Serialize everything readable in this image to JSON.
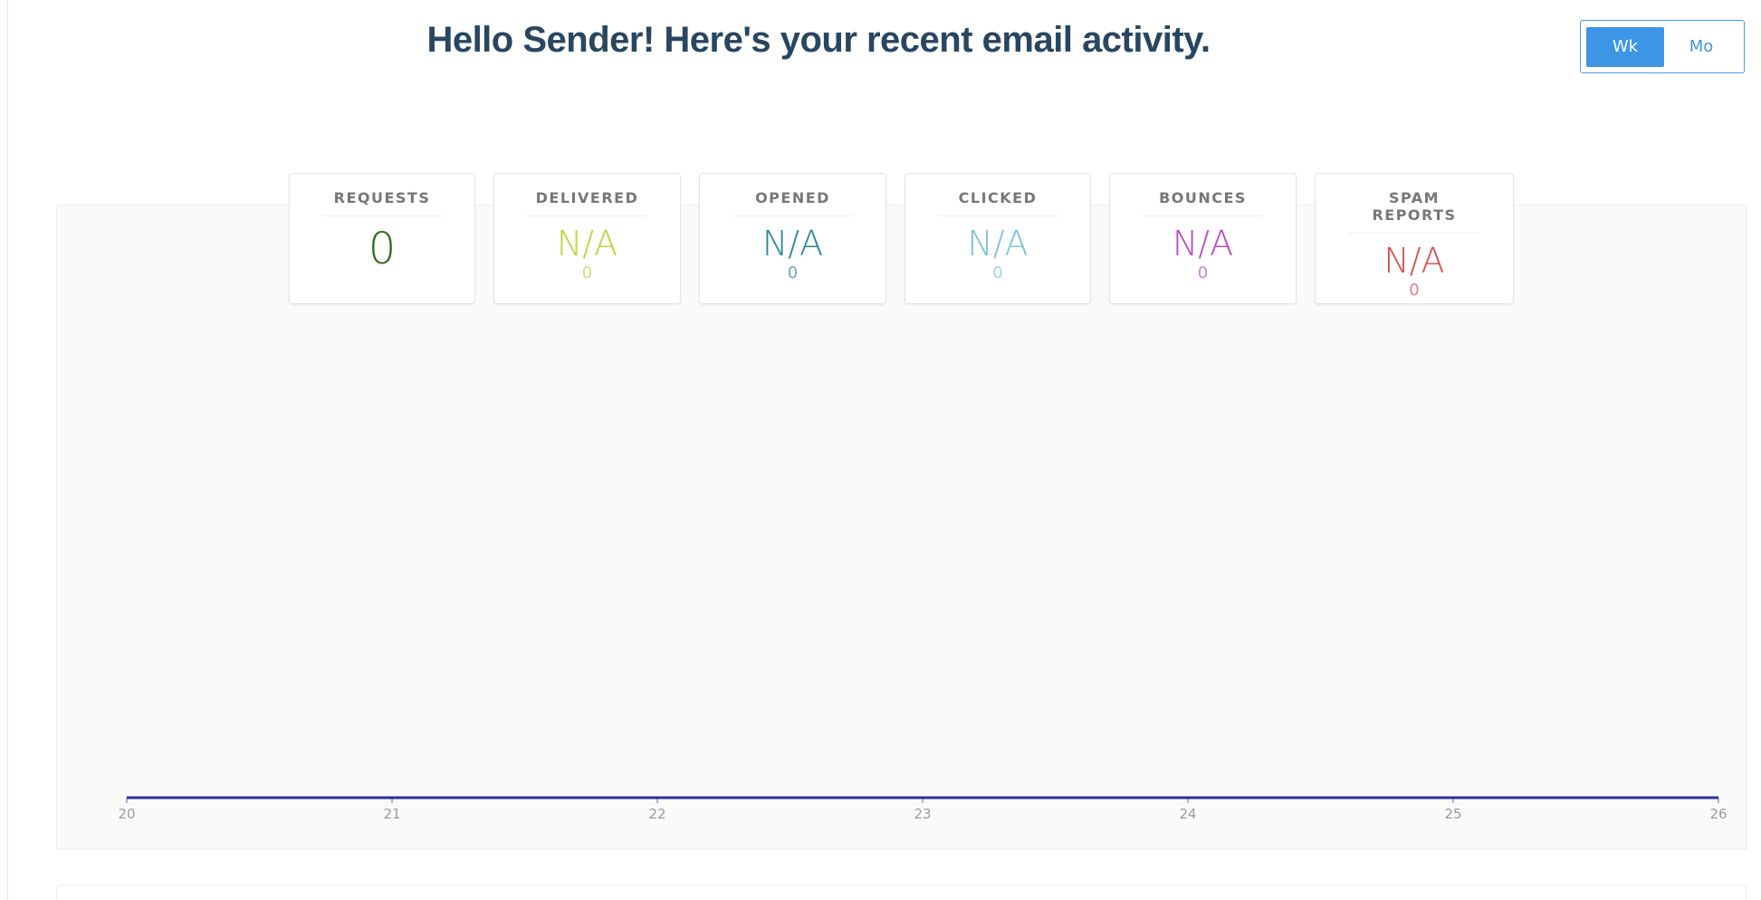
{
  "header": {
    "title": "Hello Sender! Here's your recent email activity."
  },
  "toggle": [
    "Wk",
    "Mo"
  ],
  "stats": [
    {
      "label": "REQUESTS",
      "value": 0,
      "color": "#2f6b1e"
    },
    {
      "label": "DELIVERED",
      "value": "N/A",
      "count": 0,
      "color": "#bdd33c"
    },
    {
      "label": "OPENED",
      "value": "N/A",
      "count": 0,
      "color": "#2b8a97"
    },
    {
      "label": "CLICKED",
      "value": "N/A",
      "count": 0,
      "color": "#7bc4d7"
    },
    {
      "label": "BOUNCES",
      "value": "N/A",
      "count": 0,
      "color": "#b84cc6"
    },
    {
      "label": "SPAM REPORTS",
      "value": "N/A",
      "count": 0,
      "color": "#d9504f"
    }
  ],
  "chart": {
    "type": "line",
    "x": [
      20,
      21,
      22,
      23,
      24,
      25,
      26
    ],
    "values": [
      0,
      0,
      0,
      0,
      0,
      0,
      0
    ],
    "color": "#2d2e9e",
    "xlim": [
      20,
      26
    ],
    "xticks": [
      20,
      21,
      22,
      23,
      24,
      25,
      26
    ]
  }
}
